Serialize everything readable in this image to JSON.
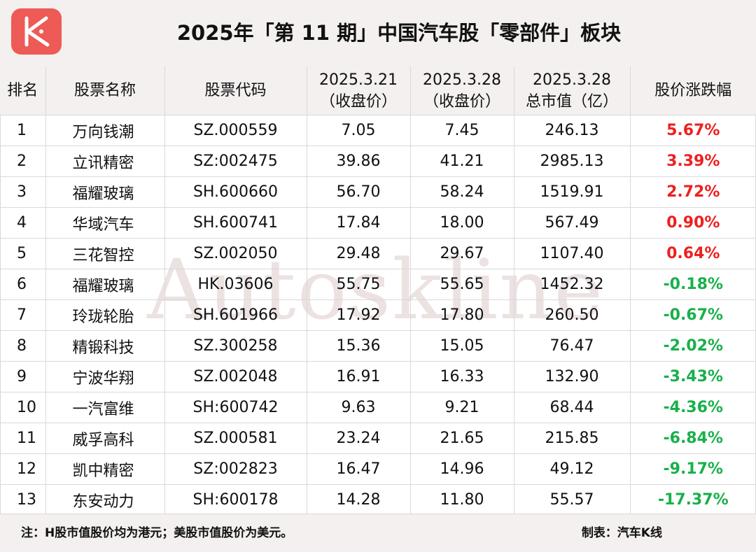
{
  "title": "2025年「第 11 期」中国汽车股「零部件」板块",
  "watermark": "Autoskline",
  "columns": {
    "rank": "排名",
    "name": "股票名称",
    "code": "股票代码",
    "close1_date": "2025.3.21",
    "close1_note": "（收盘价）",
    "close2_date": "2025.3.28",
    "close2_note": "（收盘价）",
    "cap_date": "2025.3.28",
    "cap_note": "总市值（亿）",
    "change": "股价涨跌幅"
  },
  "rows": [
    {
      "rank": "1",
      "name": "万向钱潮",
      "code": "SZ.000559",
      "close1": "7.05",
      "close2": "7.45",
      "cap": "246.13",
      "change": "5.67%"
    },
    {
      "rank": "2",
      "name": "立讯精密",
      "code": "SZ:002475",
      "close1": "39.86",
      "close2": "41.21",
      "cap": "2985.13",
      "change": "3.39%"
    },
    {
      "rank": "3",
      "name": "福耀玻璃",
      "code": "SH.600660",
      "close1": "56.70",
      "close2": "58.24",
      "cap": "1519.91",
      "change": "2.72%"
    },
    {
      "rank": "4",
      "name": "华域汽车",
      "code": "SH.600741",
      "close1": "17.84",
      "close2": "18.00",
      "cap": "567.49",
      "change": "0.90%"
    },
    {
      "rank": "5",
      "name": "三花智控",
      "code": "SZ.002050",
      "close1": "29.48",
      "close2": "29.67",
      "cap": "1107.40",
      "change": "0.64%"
    },
    {
      "rank": "6",
      "name": "福耀玻璃",
      "code": "HK.03606",
      "close1": "55.75",
      "close2": "55.65",
      "cap": "1452.32",
      "change": "-0.18%"
    },
    {
      "rank": "7",
      "name": "玲珑轮胎",
      "code": "SH.601966",
      "close1": "17.92",
      "close2": "17.80",
      "cap": "260.50",
      "change": "-0.67%"
    },
    {
      "rank": "8",
      "name": "精锻科技",
      "code": "SZ.300258",
      "close1": "15.36",
      "close2": "15.05",
      "cap": "76.47",
      "change": "-2.02%"
    },
    {
      "rank": "9",
      "name": "宁波华翔",
      "code": "SZ.002048",
      "close1": "16.91",
      "close2": "16.33",
      "cap": "132.90",
      "change": "-3.43%"
    },
    {
      "rank": "10",
      "name": "一汽富维",
      "code": "SH:600742",
      "close1": "9.63",
      "close2": "9.21",
      "cap": "68.44",
      "change": "-4.36%"
    },
    {
      "rank": "11",
      "name": "威孚高科",
      "code": "SZ.000581",
      "close1": "23.24",
      "close2": "21.65",
      "cap": "215.85",
      "change": "-6.84%"
    },
    {
      "rank": "12",
      "name": "凯中精密",
      "code": "SZ:002823",
      "close1": "16.47",
      "close2": "14.96",
      "cap": "49.12",
      "change": "-9.17%"
    },
    {
      "rank": "13",
      "name": "东安动力",
      "code": "SH:600178",
      "close1": "14.28",
      "close2": "11.80",
      "cap": "55.57",
      "change": "-17.37%"
    }
  ],
  "footer": {
    "note": "注：H股市值股价均为港元；美股市值股价为美元。",
    "maker": "制表：汽车K线"
  },
  "colors": {
    "positive": "#ee2020",
    "negative": "#18b04a",
    "logo": "#ee5a56",
    "header_bg": "#f3f0ef"
  },
  "logo_icon": "k-line-logo-icon"
}
